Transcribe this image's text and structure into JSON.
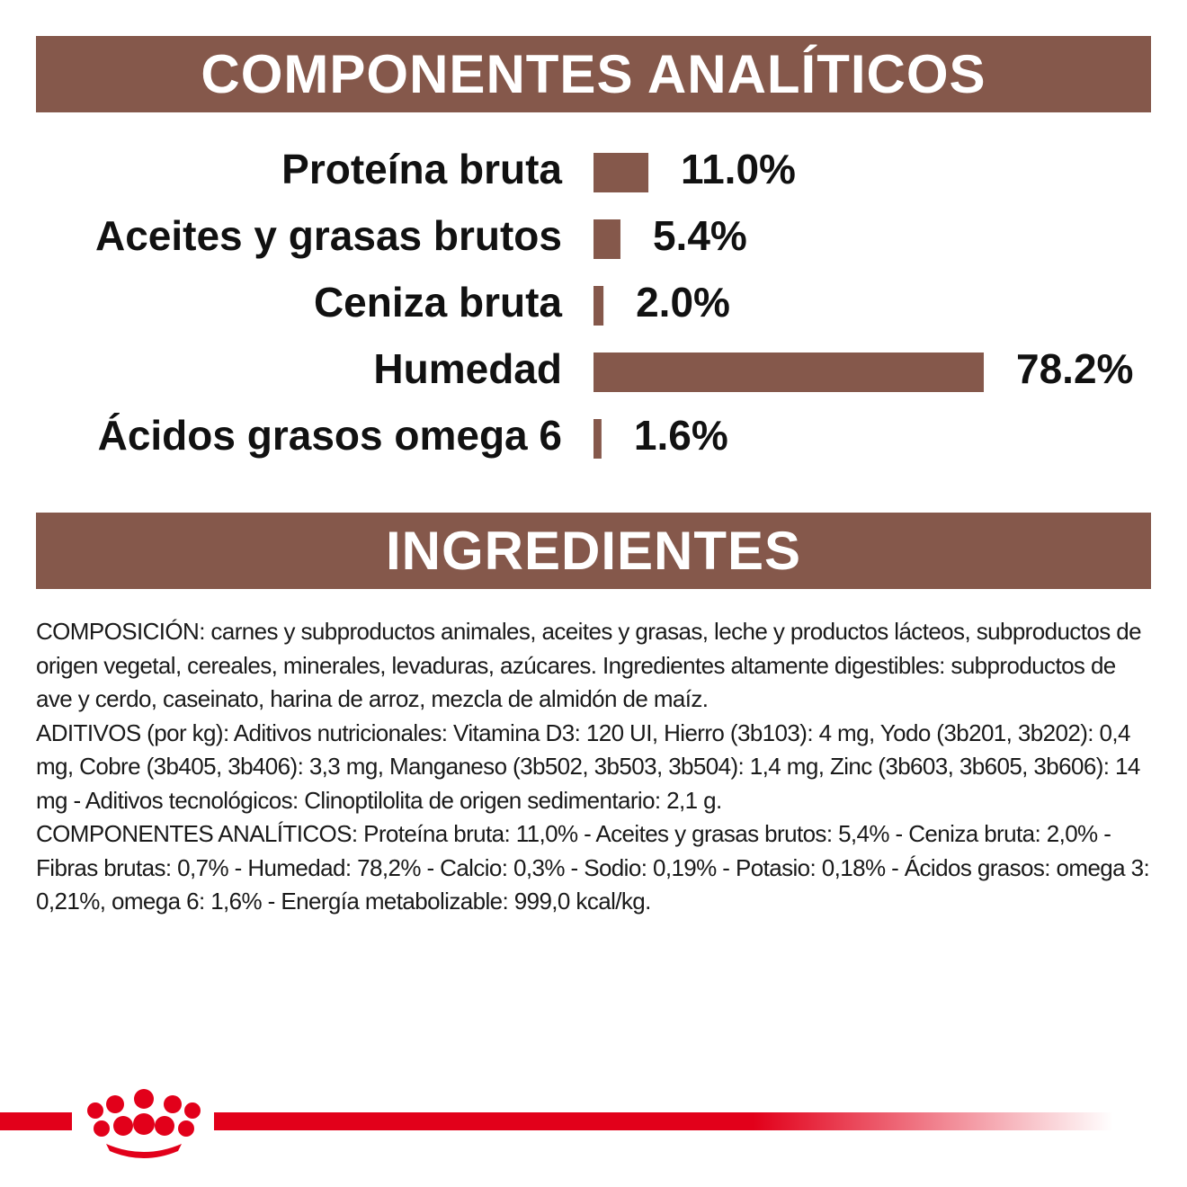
{
  "header": {
    "title": "COMPONENTES ANALÍTICOS"
  },
  "chart_data": {
    "type": "bar",
    "orientation": "horizontal",
    "categories": [
      "Proteína bruta",
      "Aceites y grasas brutos",
      "Ceniza bruta",
      "Humedad",
      "Ácidos grasos omega 6"
    ],
    "values": [
      11.0,
      5.4,
      2.0,
      78.2,
      1.6
    ],
    "value_labels": [
      "11.0%",
      "5.4%",
      "2.0%",
      "78.2%",
      "1.6%"
    ],
    "color": "#85584b",
    "xlim": [
      0,
      80
    ]
  },
  "ingredients": {
    "title": "INGREDIENTES",
    "paragraphs": [
      "COMPOSICIÓN: carnes y subproductos animales, aceites y grasas, leche y productos lácteos, subproductos de origen vegetal, cereales, minerales, levaduras, azúcares. Ingredientes altamente digestibles: subproductos de ave y cerdo, caseinato, harina de arroz, mezcla de almidón de maíz.",
      "ADITIVOS (por kg): Aditivos nutricionales: Vitamina D3: 120 UI, Hierro (3b103): 4 mg, Yodo (3b201, 3b202): 0,4 mg, Cobre (3b405, 3b406): 3,3 mg, Manganeso (3b502, 3b503, 3b504): 1,4 mg, Zinc (3b603, 3b605, 3b606): 14 mg - Aditivos tecnológicos: Clinoptilolita de origen sedimentario: 2,1 g.",
      "COMPONENTES ANALÍTICOS: Proteína bruta: 11,0% - Aceites y grasas brutos: 5,4% - Ceniza bruta: 2,0% - Fibras brutas: 0,7% - Humedad: 78,2% - Calcio: 0,3% - Sodio: 0,19% - Potasio: 0,18% - Ácidos grasos: omega 3: 0,21%, omega 6: 1,6% - Energía metabolizable: 999,0 kcal/kg."
    ]
  }
}
